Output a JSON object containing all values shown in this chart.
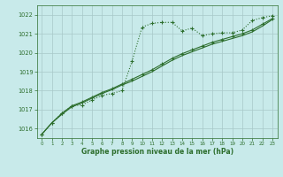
{
  "background_color": "#c8eaea",
  "grid_color": "#a8c8c8",
  "line_color": "#2d6e2d",
  "xlabel": "Graphe pression niveau de la mer (hPa)",
  "xlim": [
    -0.5,
    23.5
  ],
  "ylim": [
    1015.5,
    1022.5
  ],
  "yticks": [
    1016,
    1017,
    1018,
    1019,
    1020,
    1021,
    1022
  ],
  "xticks": [
    0,
    1,
    2,
    3,
    4,
    5,
    6,
    7,
    8,
    9,
    10,
    11,
    12,
    13,
    14,
    15,
    16,
    17,
    18,
    19,
    20,
    21,
    22,
    23
  ],
  "series1_x": [
    0,
    1,
    2,
    3,
    4,
    5,
    6,
    7,
    8,
    9,
    10,
    11,
    12,
    13,
    14,
    15,
    16,
    17,
    18,
    19,
    20,
    21,
    22,
    23
  ],
  "series1_y": [
    1015.7,
    1016.3,
    1016.8,
    1017.2,
    1017.25,
    1017.5,
    1017.75,
    1017.85,
    1018.0,
    1019.55,
    1021.35,
    1021.55,
    1021.6,
    1021.6,
    1021.15,
    1021.3,
    1020.9,
    1021.0,
    1021.05,
    1021.05,
    1021.2,
    1021.7,
    1021.85,
    1021.95
  ],
  "series2_x": [
    0,
    1,
    2,
    3,
    4,
    5,
    6,
    7,
    8,
    9,
    10,
    11,
    12,
    13,
    14,
    15,
    16,
    17,
    18,
    19,
    20,
    21,
    22,
    23
  ],
  "series2_y": [
    1015.7,
    1016.3,
    1016.8,
    1017.2,
    1017.4,
    1017.65,
    1017.9,
    1018.1,
    1018.35,
    1018.6,
    1018.85,
    1019.1,
    1019.4,
    1019.7,
    1019.95,
    1020.15,
    1020.35,
    1020.55,
    1020.7,
    1020.85,
    1021.0,
    1021.2,
    1021.5,
    1021.8
  ],
  "series3_x": [
    0,
    1,
    2,
    3,
    4,
    5,
    6,
    7,
    8,
    9,
    10,
    11,
    12,
    13,
    14,
    15,
    16,
    17,
    18,
    19,
    20,
    21,
    22,
    23
  ],
  "series3_y": [
    1015.7,
    1016.3,
    1016.75,
    1017.15,
    1017.35,
    1017.6,
    1017.85,
    1018.05,
    1018.3,
    1018.5,
    1018.75,
    1019.0,
    1019.3,
    1019.6,
    1019.85,
    1020.05,
    1020.25,
    1020.45,
    1020.6,
    1020.75,
    1020.9,
    1021.1,
    1021.4,
    1021.75
  ]
}
